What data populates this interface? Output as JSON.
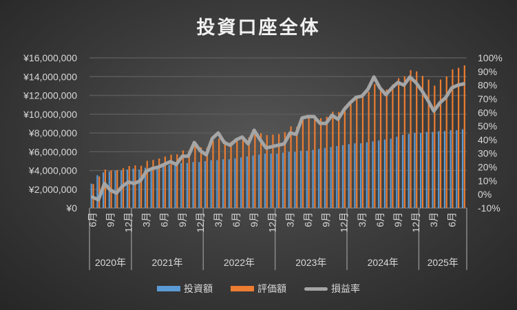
{
  "chart_data": {
    "type": "bar",
    "title": "投資口座全体",
    "colors": {
      "invest": "#5b9bd5",
      "value": "#ed7d31",
      "rate": "#a5a5a5"
    },
    "y_left": {
      "min": 0,
      "max": 16000000,
      "step": 2000000,
      "ticks": [
        "¥0",
        "¥2,000,000",
        "¥4,000,000",
        "¥6,000,000",
        "¥8,000,000",
        "¥10,000,000",
        "¥12,000,000",
        "¥14,000,000",
        "¥16,000,000"
      ]
    },
    "y_right": {
      "min": -10,
      "max": 100,
      "step": 10,
      "ticks": [
        "-10%",
        "0%",
        "10%",
        "20%",
        "30%",
        "40%",
        "50%",
        "60%",
        "70%",
        "80%",
        "90%",
        "100%"
      ]
    },
    "years": [
      {
        "label": "2020年",
        "months": 7
      },
      {
        "label": "2021年",
        "months": 12
      },
      {
        "label": "2022年",
        "months": 12
      },
      {
        "label": "2023年",
        "months": 12
      },
      {
        "label": "2024年",
        "months": 12
      },
      {
        "label": "2025年",
        "months": 8
      }
    ],
    "start_month": 6,
    "month_suffix": "月",
    "series": [
      {
        "name": "投資額",
        "type": "bar",
        "axis": "left",
        "values": [
          2.6,
          3.5,
          3.8,
          3.9,
          4.0,
          4.0,
          4.1,
          4.2,
          4.1,
          4.3,
          4.3,
          4.4,
          4.5,
          4.6,
          4.7,
          4.8,
          4.8,
          4.9,
          4.9,
          5.0,
          5.1,
          5.1,
          5.2,
          5.2,
          5.3,
          5.4,
          5.5,
          5.6,
          5.7,
          5.8,
          5.8,
          5.8,
          5.9,
          6.0,
          6.0,
          6.1,
          6.1,
          6.2,
          6.3,
          6.4,
          6.5,
          6.6,
          6.7,
          6.8,
          6.9,
          6.9,
          7.0,
          7.1,
          7.2,
          7.3,
          7.4,
          7.6,
          7.8,
          7.9,
          8.0,
          8.0,
          8.1,
          8.1,
          8.2,
          8.2,
          8.3,
          8.3,
          8.4
        ],
        "unit": "million yen"
      },
      {
        "name": "評価額",
        "type": "bar",
        "axis": "left",
        "values": [
          2.55,
          3.36,
          4.1,
          4.02,
          4.04,
          4.24,
          4.47,
          4.54,
          4.51,
          5.03,
          5.12,
          5.28,
          5.49,
          5.7,
          5.73,
          6.14,
          6.14,
          6.76,
          6.47,
          6.45,
          7.19,
          7.4,
          7.18,
          7.07,
          7.42,
          7.67,
          7.54,
          8.23,
          7.98,
          7.77,
          7.83,
          7.89,
          8.08,
          8.7,
          8.64,
          9.52,
          9.58,
          9.73,
          9.58,
          9.73,
          10.27,
          10.23,
          10.85,
          11.36,
          11.8,
          11.87,
          12.39,
          13.21,
          12.82,
          12.63,
          13.17,
          13.83,
          14.04,
          14.69,
          14.56,
          14.08,
          13.69,
          13.04,
          13.69,
          14.02,
          14.77,
          14.94,
          15.2
        ],
        "unit": "million yen"
      },
      {
        "name": "損益率",
        "type": "line",
        "axis": "right",
        "values": [
          -2,
          -4,
          8,
          3,
          1,
          6,
          9,
          8,
          10,
          17,
          19,
          20,
          22,
          24,
          22,
          28,
          28,
          38,
          32,
          29,
          41,
          45,
          38,
          36,
          40,
          42,
          37,
          47,
          40,
          34,
          35,
          36,
          37,
          45,
          44,
          56,
          57,
          57,
          52,
          52,
          58,
          55,
          62,
          67,
          71,
          72,
          77,
          86,
          78,
          73,
          78,
          82,
          80,
          86,
          82,
          76,
          69,
          61,
          67,
          71,
          78,
          80,
          81
        ],
        "unit": "%"
      }
    ],
    "grid": true,
    "legend": "bottom"
  }
}
